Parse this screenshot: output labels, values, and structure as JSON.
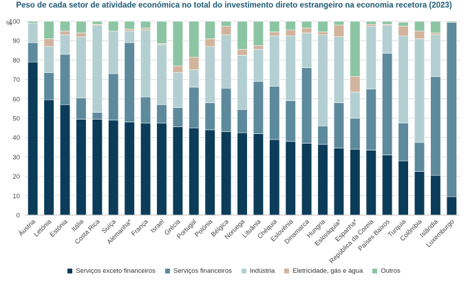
{
  "chart_data": {
    "type": "bar",
    "stacked": true,
    "title": "Peso de cada setor de atividade económica no total do investimento direto estrangeiro na economia recetora (2023)",
    "ylabel": "%",
    "xlabel": "",
    "ylim": [
      0,
      100
    ],
    "yticks": [
      0,
      10,
      20,
      30,
      40,
      50,
      60,
      70,
      80,
      90,
      100
    ],
    "grid": true,
    "legend_position": "bottom",
    "categories": [
      "Áustria",
      "Letónia",
      "Estónia",
      "Itália",
      "Costa Rica",
      "Suíça",
      "Alemanha*",
      "França",
      "Israel",
      "Grécia",
      "Portugal",
      "Polónia",
      "Bélgica",
      "Noruega",
      "Lituânia",
      "Chéquia",
      "Eslovénia",
      "Dinamarca",
      "Hungria",
      "Eslováquia*",
      "Espanha*",
      "República da Coreia",
      "Países Baixos",
      "Turquia",
      "Colômbia",
      "Islândia",
      "Luxemburgo"
    ],
    "series": [
      {
        "name": "Serviços exceto financeiros",
        "color": "#0b3c5a",
        "values": [
          79,
          59.5,
          57,
          49.5,
          49.5,
          49,
          48,
          47.5,
          47.5,
          45.5,
          45,
          44,
          43,
          42.5,
          42,
          39,
          38,
          37,
          36.5,
          34.5,
          34,
          33.5,
          31,
          28,
          22.5,
          20.5,
          9.5
        ]
      },
      {
        "name": "Serviços financeiros",
        "color": "#5d8a9c",
        "values": [
          10,
          14,
          26,
          11,
          3.5,
          24,
          41,
          13.5,
          9.5,
          10,
          21,
          14,
          22.5,
          12,
          27,
          27.5,
          21,
          39,
          9.5,
          23.5,
          16,
          31.5,
          52.5,
          19.5,
          15,
          51,
          90
        ]
      },
      {
        "name": "Indústria",
        "color": "#b4cfd2",
        "values": [
          10,
          13.5,
          10,
          31.5,
          45,
          22,
          6,
          34.5,
          31,
          18,
          9,
          29,
          27.5,
          28,
          16.5,
          26,
          33.5,
          18,
          47,
          34,
          13.5,
          32.5,
          14.5,
          45,
          53.5,
          21.5,
          0
        ]
      },
      {
        "name": "Eletricidade, gás e água",
        "color": "#d2b39c",
        "values": [
          0,
          4,
          2,
          2,
          0.5,
          0,
          1,
          1,
          0.5,
          3.5,
          6.5,
          4,
          4.5,
          3,
          2,
          2,
          3,
          2.5,
          1.5,
          6,
          8,
          1,
          0.5,
          5,
          4,
          1,
          0
        ]
      },
      {
        "name": "Outros",
        "color": "#8cc5a3",
        "values": [
          1,
          9,
          5,
          6,
          1.5,
          5,
          4,
          3.5,
          11.5,
          23,
          18.5,
          9,
          2.5,
          14.5,
          12.5,
          5.5,
          4.5,
          3.5,
          5.5,
          2,
          28.5,
          1.5,
          1.5,
          2,
          5,
          6,
          0.5
        ]
      }
    ]
  }
}
